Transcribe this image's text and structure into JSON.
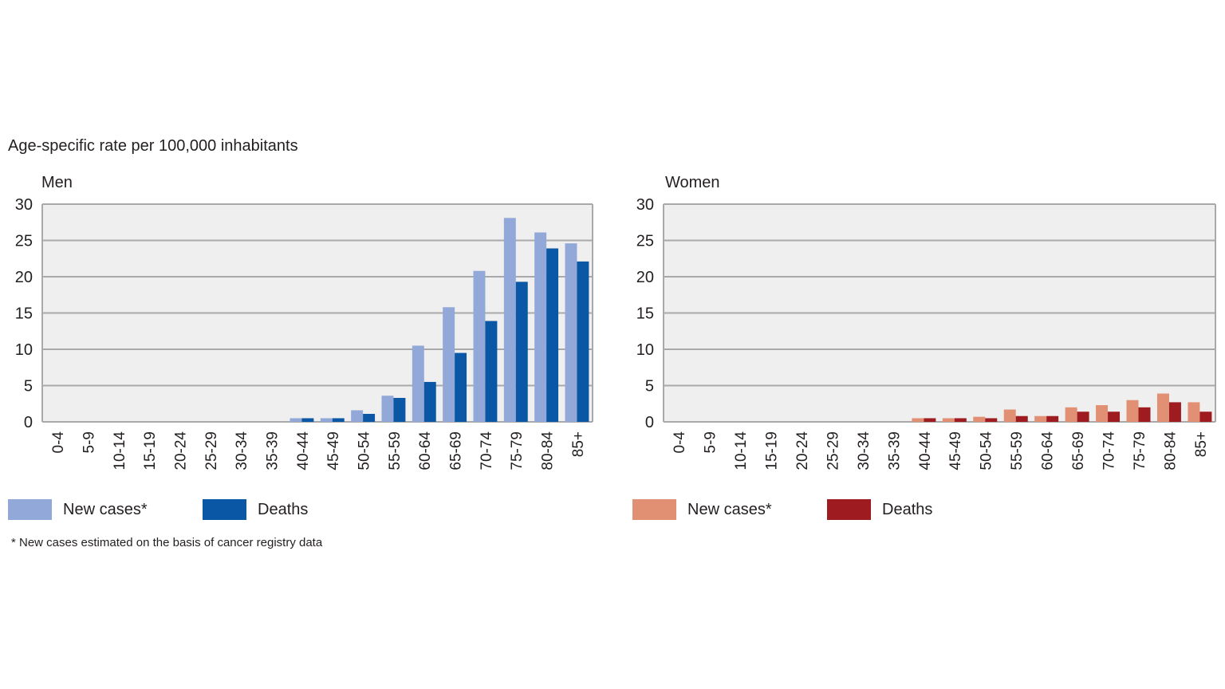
{
  "title": "Age-specific rate per 100,000 inhabitants",
  "footnote": "* New cases estimated on the basis of cancer registry data",
  "colors": {
    "men_new": "#91a8d8",
    "men_deaths": "#0a58a5",
    "women_new": "#e29074",
    "women_deaths": "#9e1b20",
    "plot_bg": "#efefef",
    "grid": "#a9a9ab"
  },
  "chart_data": [
    {
      "type": "bar",
      "panel": "Men",
      "categories": [
        "0-4",
        "5-9",
        "10-14",
        "15-19",
        "20-24",
        "25-29",
        "30-34",
        "35-39",
        "40-44",
        "45-49",
        "50-54",
        "55-59",
        "60-64",
        "65-69",
        "70-74",
        "75-79",
        "80-84",
        "85+"
      ],
      "ylim": [
        0,
        30
      ],
      "yticks": [
        0,
        5,
        10,
        15,
        20,
        25,
        30
      ],
      "grid": true,
      "legend_position": "bottom",
      "series": [
        {
          "name": "New cases*",
          "color_key": "men_new",
          "values": [
            0,
            0,
            0,
            0,
            0,
            0,
            0,
            0,
            0.5,
            0.5,
            1.6,
            3.6,
            10.5,
            15.8,
            20.8,
            28.1,
            26.1,
            24.6
          ]
        },
        {
          "name": "Deaths",
          "color_key": "men_deaths",
          "values": [
            0,
            0,
            0,
            0,
            0,
            0,
            0,
            0,
            0.5,
            0.5,
            1.1,
            3.3,
            5.5,
            9.5,
            13.9,
            19.3,
            23.9,
            22.1
          ]
        }
      ]
    },
    {
      "type": "bar",
      "panel": "Women",
      "categories": [
        "0-4",
        "5-9",
        "10-14",
        "15-19",
        "20-24",
        "25-29",
        "30-34",
        "35-39",
        "40-44",
        "45-49",
        "50-54",
        "55-59",
        "60-64",
        "65-69",
        "70-74",
        "75-79",
        "80-84",
        "85+"
      ],
      "ylim": [
        0,
        30
      ],
      "yticks": [
        0,
        5,
        10,
        15,
        20,
        25,
        30
      ],
      "grid": true,
      "legend_position": "bottom",
      "series": [
        {
          "name": "New cases*",
          "color_key": "women_new",
          "values": [
            0,
            0,
            0,
            0,
            0,
            0,
            0,
            0,
            0.5,
            0.5,
            0.7,
            1.7,
            0.8,
            2.0,
            2.3,
            3.0,
            3.9,
            2.7
          ]
        },
        {
          "name": "Deaths",
          "color_key": "women_deaths",
          "values": [
            0,
            0,
            0,
            0,
            0,
            0,
            0,
            0,
            0.5,
            0.5,
            0.5,
            0.8,
            0.8,
            1.4,
            1.4,
            2.0,
            2.7,
            1.4
          ]
        }
      ]
    }
  ]
}
